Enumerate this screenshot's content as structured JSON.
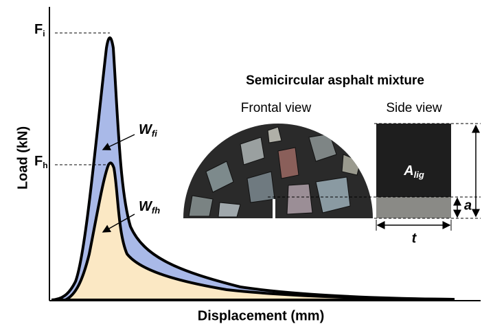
{
  "axes": {
    "y_label": "Load (kN)",
    "x_label": "Displacement (mm)"
  },
  "load_marks": [
    {
      "main": "F",
      "sub": "i"
    },
    {
      "main": "F",
      "sub": "h"
    }
  ],
  "work_labels": [
    {
      "main": "W",
      "sub": "fi"
    },
    {
      "main": "W",
      "sub": "fh"
    }
  ],
  "specimen": {
    "title": "Semicircular asphalt mixture",
    "frontal_view": "Frontal view",
    "side_view": "Side view",
    "ligament_area": {
      "main": "A",
      "sub": "lig"
    },
    "notch_depth": "a",
    "thickness": "t"
  }
}
